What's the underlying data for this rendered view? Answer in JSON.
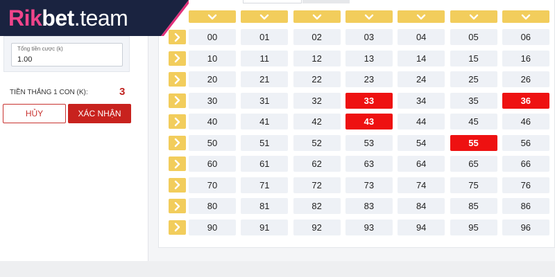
{
  "logo": {
    "brand_part1": "Rik",
    "brand_part2": "bet",
    "brand_part3": ".team"
  },
  "bet_form": {
    "amount_label": "Tổng tiền cược (k)",
    "amount_value": "1.00",
    "win_label": "TIỀN THẮNG 1 CON (K):",
    "win_value": "3",
    "cancel_label": "HỦY",
    "confirm_label": "XÁC NHẬN"
  },
  "number_grid": {
    "visible_columns": 7,
    "rows": [
      [
        "00",
        "01",
        "02",
        "03",
        "04",
        "05",
        "06"
      ],
      [
        "10",
        "11",
        "12",
        "13",
        "14",
        "15",
        "16"
      ],
      [
        "20",
        "21",
        "22",
        "23",
        "24",
        "25",
        "26"
      ],
      [
        "30",
        "31",
        "32",
        "33",
        "34",
        "35",
        "36"
      ],
      [
        "40",
        "41",
        "42",
        "43",
        "44",
        "45",
        "46"
      ],
      [
        "50",
        "51",
        "52",
        "53",
        "54",
        "55",
        "56"
      ],
      [
        "60",
        "61",
        "62",
        "63",
        "64",
        "65",
        "66"
      ],
      [
        "70",
        "71",
        "72",
        "73",
        "74",
        "75",
        "76"
      ],
      [
        "80",
        "81",
        "82",
        "83",
        "84",
        "85",
        "86"
      ],
      [
        "90",
        "91",
        "92",
        "93",
        "94",
        "95",
        "96"
      ]
    ],
    "selected": [
      "33",
      "36",
      "43",
      "55"
    ]
  },
  "colors": {
    "accent_yellow": "#f2cd5c",
    "selected_red": "#ee1111",
    "button_red": "#c8221e",
    "logo_pink": "#e0307a",
    "logo_dark": "#1a2340"
  },
  "icons": {
    "column_arrow": "chevron-down-icon",
    "row_arrow": "chevron-right-icon"
  }
}
